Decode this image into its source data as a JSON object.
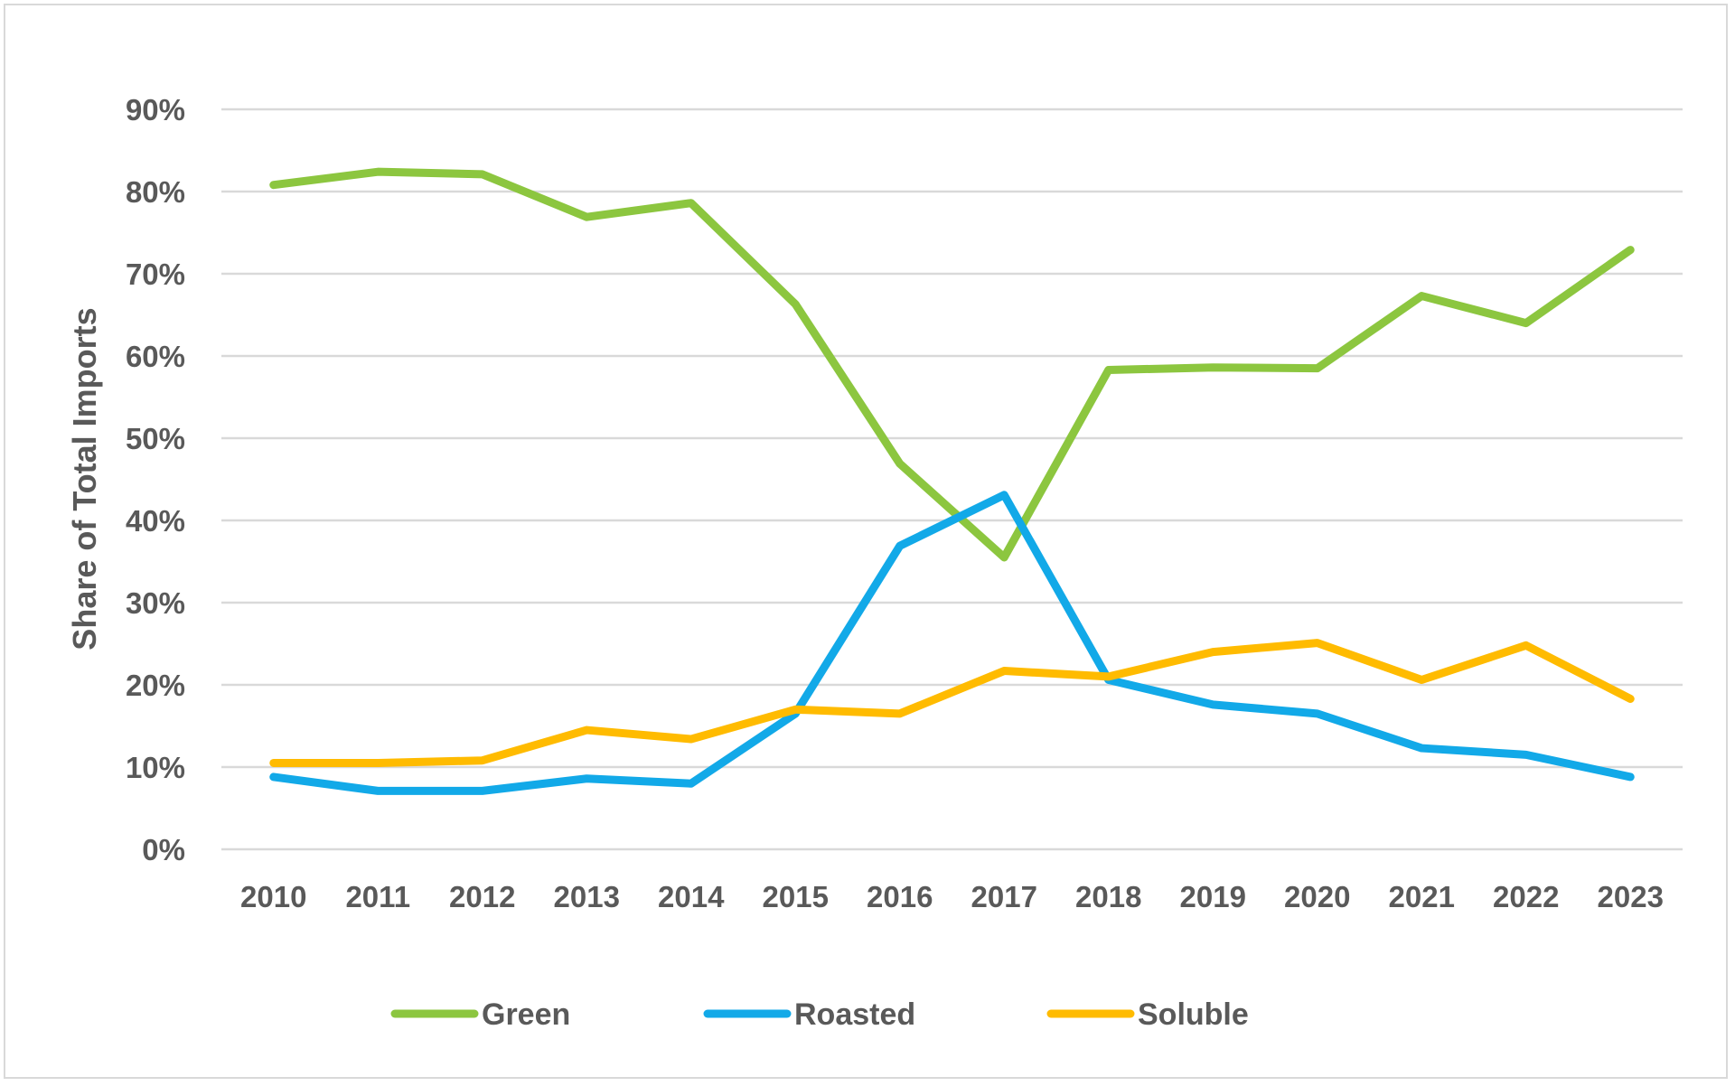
{
  "chart_data": {
    "type": "line",
    "title": "",
    "xlabel": "",
    "ylabel": "Share of Total Imports",
    "x": [
      "2010",
      "2011",
      "2012",
      "2013",
      "2014",
      "2015",
      "2016",
      "2017",
      "2018",
      "2019",
      "2020",
      "2021",
      "2022",
      "2023"
    ],
    "y_ticks": [
      "0%",
      "10%",
      "20%",
      "30%",
      "40%",
      "50%",
      "60%",
      "70%",
      "80%",
      "90%"
    ],
    "ylim": [
      0,
      90
    ],
    "y_unit": "percent",
    "grid": true,
    "legend_position": "bottom",
    "series": [
      {
        "name": "Green",
        "color": "#8cc63f",
        "values": [
          80.8,
          82.4,
          82.1,
          76.9,
          78.6,
          66.3,
          46.9,
          35.5,
          58.3,
          58.6,
          58.5,
          67.3,
          64.0,
          72.9
        ]
      },
      {
        "name": "Roasted",
        "color": "#12a9e8",
        "values": [
          8.8,
          7.1,
          7.1,
          8.6,
          8.0,
          16.5,
          36.9,
          43.1,
          20.6,
          17.6,
          16.5,
          12.3,
          11.5,
          8.8
        ]
      },
      {
        "name": "Soluble",
        "color": "#ffbb00",
        "values": [
          10.5,
          10.5,
          10.8,
          14.5,
          13.4,
          17.0,
          16.5,
          21.7,
          21.0,
          24.0,
          25.1,
          20.6,
          24.8,
          18.3
        ]
      }
    ]
  }
}
